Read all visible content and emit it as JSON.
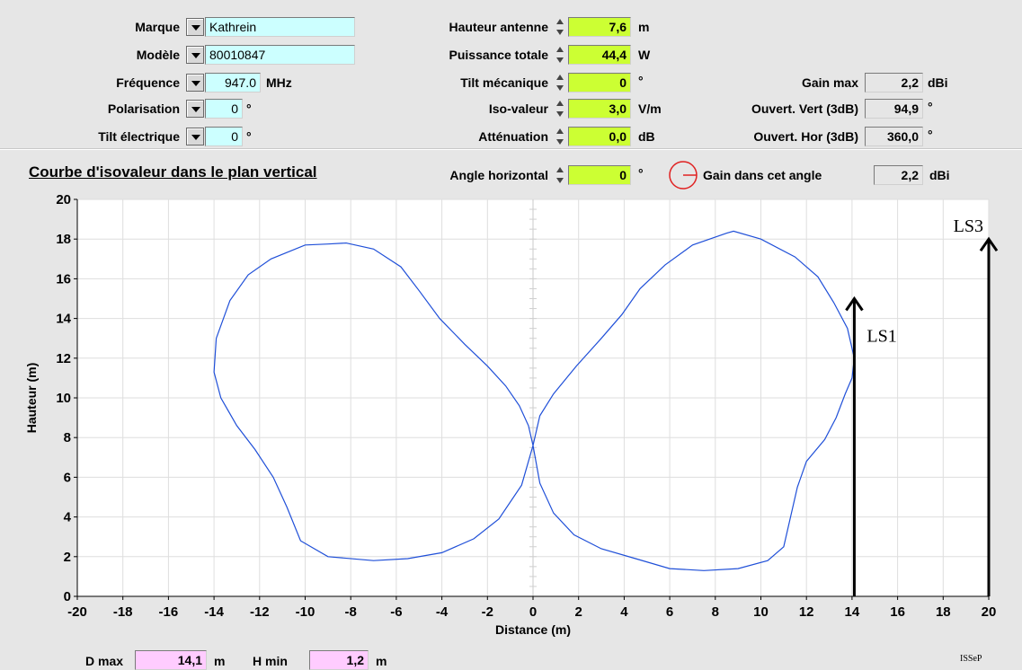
{
  "antenna": {
    "marque": {
      "label": "Marque",
      "value": "Kathrein"
    },
    "modele": {
      "label": "Modèle",
      "value": "80010847"
    },
    "frequence": {
      "label": "Fréquence",
      "value": "947.0",
      "unit": "MHz"
    },
    "polarisation": {
      "label": "Polarisation",
      "value": "0",
      "unit": "°"
    },
    "tilt_electrique": {
      "label": "Tilt électrique",
      "value": "0",
      "unit": "°"
    }
  },
  "params": {
    "hauteur_antenne": {
      "label": "Hauteur antenne",
      "value": "7,6",
      "unit": "m"
    },
    "puissance_totale": {
      "label": "Puissance totale",
      "value": "44,4",
      "unit": "W"
    },
    "tilt_mecanique": {
      "label": "Tilt mécanique",
      "value": "0",
      "unit": "°"
    },
    "iso_valeur": {
      "label": "Iso-valeur",
      "value": "3,0",
      "unit": "V/m"
    },
    "attenuation": {
      "label": "Atténuation",
      "value": "0,0",
      "unit": "dB"
    }
  },
  "gain": {
    "gain_max": {
      "label": "Gain max",
      "value": "2,2",
      "unit": "dBi"
    },
    "ouvert_vert": {
      "label": "Ouvert. Vert (3dB)",
      "value": "94,9",
      "unit": "°"
    },
    "ouvert_hor": {
      "label": "Ouvert. Hor (3dB)",
      "value": "360,0",
      "unit": "°"
    }
  },
  "section": {
    "title": "Courbe d'isovaleur dans le plan vertical",
    "angle_horizontal": {
      "label": "Angle horizontal",
      "value": "0",
      "unit": "°"
    },
    "gain_angle": {
      "label": "Gain dans cet angle",
      "value": "2,2",
      "unit": "dBi"
    }
  },
  "footer": {
    "dmax": {
      "label": "D max",
      "value": "14,1",
      "unit": "m"
    },
    "hmin": {
      "label": "H min",
      "value": "1,2",
      "unit": "m"
    },
    "brand": "ISSeP"
  },
  "colors": {
    "curve": "#1f4fd8",
    "annotation": "#000000",
    "grid": "#dedede",
    "indicator": "#e02020"
  },
  "chart_data": {
    "type": "line",
    "title": "",
    "xlabel": "Distance (m)",
    "ylabel": "Hauteur (m)",
    "xlim": [
      -20,
      20
    ],
    "ylim": [
      0,
      20
    ],
    "x_ticks": [
      -20,
      -18,
      -16,
      -14,
      -12,
      -10,
      -8,
      -6,
      -4,
      -2,
      0,
      2,
      4,
      6,
      8,
      10,
      12,
      14,
      16,
      18,
      20
    ],
    "y_ticks": [
      0,
      2,
      4,
      6,
      8,
      10,
      12,
      14,
      16,
      18,
      20
    ],
    "grid": true,
    "series": [
      {
        "points": [
          [
            0,
            7.6
          ],
          [
            -0.2,
            8.6
          ],
          [
            -0.6,
            9.6
          ],
          [
            -1.2,
            10.6
          ],
          [
            -2,
            11.6
          ],
          [
            -3,
            12.7
          ],
          [
            -4.1,
            14.0
          ],
          [
            -5.0,
            15.4
          ],
          [
            -5.8,
            16.6
          ],
          [
            -7,
            17.5
          ],
          [
            -8.2,
            17.8
          ],
          [
            -9,
            17.75
          ],
          [
            -10,
            17.7
          ],
          [
            -11.5,
            17.0
          ],
          [
            -12.5,
            16.2
          ],
          [
            -13.3,
            14.9
          ],
          [
            -13.9,
            13.0
          ],
          [
            -14.0,
            11.3
          ],
          [
            -13.7,
            10.0
          ],
          [
            -13,
            8.6
          ],
          [
            -12.2,
            7.4
          ],
          [
            -11.4,
            6.0
          ],
          [
            -10.8,
            4.5
          ],
          [
            -10.2,
            2.8
          ],
          [
            -9.0,
            2.0
          ],
          [
            -7.0,
            1.8
          ],
          [
            -5.5,
            1.9
          ],
          [
            -4.0,
            2.2
          ],
          [
            -2.6,
            2.9
          ],
          [
            -1.5,
            3.9
          ],
          [
            -0.5,
            5.6
          ],
          [
            0,
            7.6
          ]
        ]
      },
      {
        "points": [
          [
            0,
            7.6
          ],
          [
            0.3,
            9.1
          ],
          [
            0.9,
            10.2
          ],
          [
            1.9,
            11.6
          ],
          [
            3,
            13.0
          ],
          [
            3.9,
            14.2
          ],
          [
            4.7,
            15.5
          ],
          [
            5.8,
            16.7
          ],
          [
            7,
            17.7
          ],
          [
            8.5,
            18.3
          ],
          [
            8.8,
            18.4
          ],
          [
            10,
            18.0
          ],
          [
            11.5,
            17.1
          ],
          [
            12.5,
            16.1
          ],
          [
            13.2,
            14.8
          ],
          [
            13.8,
            13.5
          ],
          [
            14.1,
            12.0
          ],
          [
            14.0,
            11.0
          ],
          [
            13.7,
            10.2
          ],
          [
            13.3,
            9.0
          ],
          [
            12.8,
            7.9
          ],
          [
            12.0,
            6.8
          ],
          [
            11.6,
            5.5
          ],
          [
            11.3,
            4.0
          ],
          [
            11,
            2.5
          ],
          [
            10.3,
            1.8
          ],
          [
            9,
            1.4
          ],
          [
            7.5,
            1.3
          ],
          [
            6,
            1.4
          ],
          [
            4.5,
            1.9
          ],
          [
            3,
            2.4
          ],
          [
            1.8,
            3.1
          ],
          [
            0.9,
            4.2
          ],
          [
            0.3,
            5.7
          ],
          [
            0,
            7.6
          ]
        ]
      }
    ],
    "annotations": [
      {
        "text": "LS1",
        "x": 14.1,
        "y_from": 0,
        "y_to": 15
      },
      {
        "text": "LS3",
        "x": 20,
        "y_from": 0,
        "y_to": 18
      }
    ]
  }
}
